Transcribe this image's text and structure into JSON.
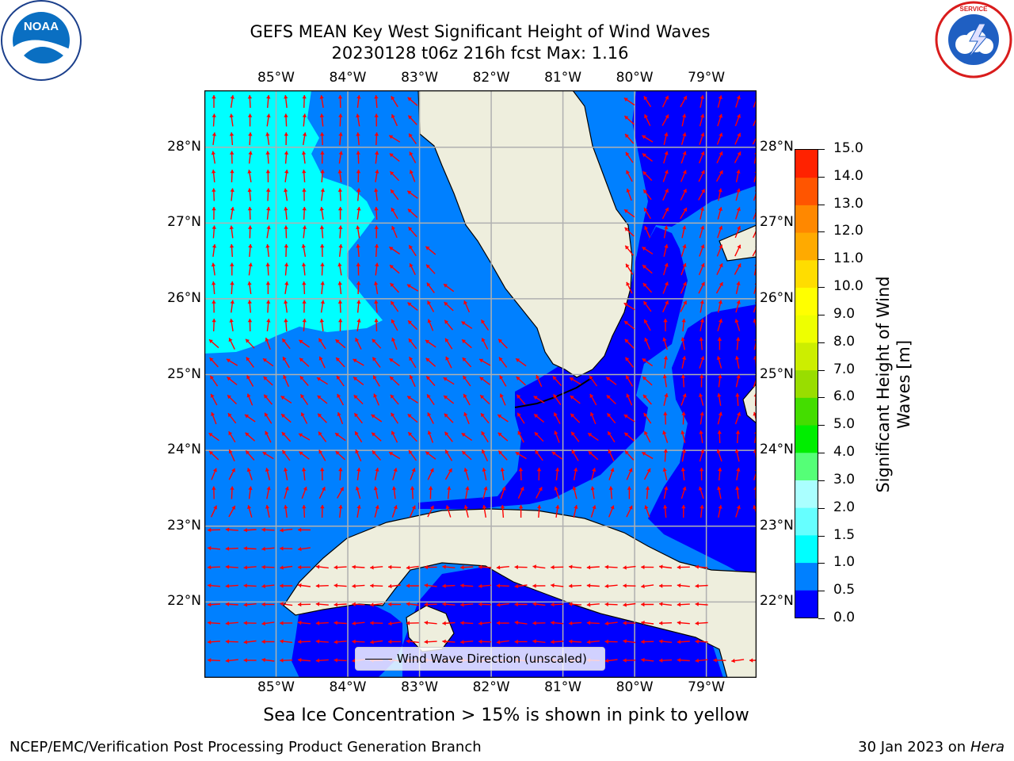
{
  "title": {
    "line1": "GEFS MEAN Key West Significant Height of Wind Waves",
    "line2": "20230128 t06z 216h fcst   Max: 1.16"
  },
  "logos": {
    "noaa": {
      "text": "NOAA",
      "ring": "NATIONAL OCEANIC AND ATMOSPHERIC ADMINISTRATION · U.S. DEPARTMENT OF COMMERCE"
    },
    "nws": {
      "ring": "NATIONAL WEATHER SERVICE"
    }
  },
  "map": {
    "lon_labels": [
      "85°W",
      "84°W",
      "83°W",
      "82°W",
      "81°W",
      "80°W",
      "79°W"
    ],
    "lat_labels": [
      "28°N",
      "27°N",
      "26°N",
      "25°N",
      "24°N",
      "23°N",
      "22°N"
    ],
    "lon_range": [
      -86.0,
      -78.3
    ],
    "lat_range": [
      21.0,
      28.75
    ],
    "legend_label": "Wind Wave Direction (unscaled)",
    "arrow_color": "#ff0000",
    "land_color": "#eeeedd",
    "colors": {
      "band_0_0.5": "#0000ff",
      "band_0.5_1.0": "#0080ff",
      "band_1.0_1.5": "#00ffff"
    }
  },
  "colorbar": {
    "title": "Significant Height of Wind Waves [m]",
    "tick_labels": [
      "15.0",
      "14.0",
      "13.0",
      "12.0",
      "11.0",
      "10.0",
      "9.0",
      "8.0",
      "7.0",
      "6.0",
      "5.0",
      "4.0",
      "3.0",
      "2.0",
      "1.5",
      "1.0",
      "0.5",
      "0.0"
    ],
    "colors": [
      "#0000ff",
      "#0080ff",
      "#00ffff",
      "#66ffff",
      "#aaffff",
      "#55ff77",
      "#00ee00",
      "#44dd00",
      "#99dd00",
      "#ccee00",
      "#eeff00",
      "#ffff00",
      "#ffdd00",
      "#ffaa00",
      "#ff8800",
      "#ff5500",
      "#ff2200"
    ]
  },
  "sea_ice_note": "Sea Ice Concentration > 15% is shown in pink to yellow",
  "footer": {
    "left": "NCEP/EMC/Verification Post Processing Product Generation Branch",
    "right_date": "30 Jan 2023 on ",
    "right_host": "Hera"
  }
}
